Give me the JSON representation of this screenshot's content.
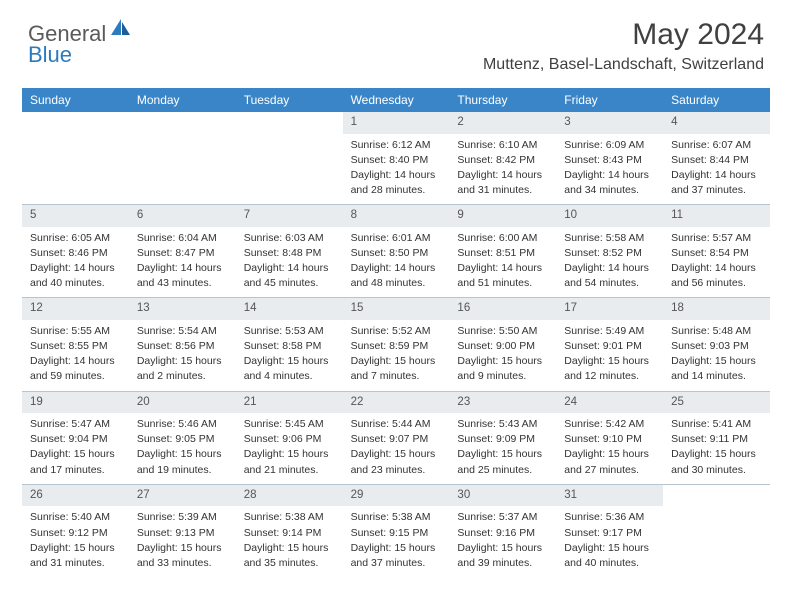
{
  "logo": {
    "general": "General",
    "blue": "Blue"
  },
  "title": "May 2024",
  "location": "Muttenz, Basel-Landschaft, Switzerland",
  "colors": {
    "header_bg": "#3a85c7",
    "header_text": "#ffffff",
    "daynum_bg": "#e8ecef",
    "border": "#b8c5d0",
    "body_text": "#333333",
    "title_text": "#404040",
    "logo_gray": "#5a5a5a",
    "logo_blue": "#2b7bbf"
  },
  "day_names": [
    "Sunday",
    "Monday",
    "Tuesday",
    "Wednesday",
    "Thursday",
    "Friday",
    "Saturday"
  ],
  "weeks": [
    [
      {
        "empty": true
      },
      {
        "empty": true
      },
      {
        "empty": true
      },
      {
        "n": "1",
        "sr": "Sunrise: 6:12 AM",
        "ss": "Sunset: 8:40 PM",
        "d1": "Daylight: 14 hours",
        "d2": "and 28 minutes."
      },
      {
        "n": "2",
        "sr": "Sunrise: 6:10 AM",
        "ss": "Sunset: 8:42 PM",
        "d1": "Daylight: 14 hours",
        "d2": "and 31 minutes."
      },
      {
        "n": "3",
        "sr": "Sunrise: 6:09 AM",
        "ss": "Sunset: 8:43 PM",
        "d1": "Daylight: 14 hours",
        "d2": "and 34 minutes."
      },
      {
        "n": "4",
        "sr": "Sunrise: 6:07 AM",
        "ss": "Sunset: 8:44 PM",
        "d1": "Daylight: 14 hours",
        "d2": "and 37 minutes."
      }
    ],
    [
      {
        "n": "5",
        "sr": "Sunrise: 6:05 AM",
        "ss": "Sunset: 8:46 PM",
        "d1": "Daylight: 14 hours",
        "d2": "and 40 minutes."
      },
      {
        "n": "6",
        "sr": "Sunrise: 6:04 AM",
        "ss": "Sunset: 8:47 PM",
        "d1": "Daylight: 14 hours",
        "d2": "and 43 minutes."
      },
      {
        "n": "7",
        "sr": "Sunrise: 6:03 AM",
        "ss": "Sunset: 8:48 PM",
        "d1": "Daylight: 14 hours",
        "d2": "and 45 minutes."
      },
      {
        "n": "8",
        "sr": "Sunrise: 6:01 AM",
        "ss": "Sunset: 8:50 PM",
        "d1": "Daylight: 14 hours",
        "d2": "and 48 minutes."
      },
      {
        "n": "9",
        "sr": "Sunrise: 6:00 AM",
        "ss": "Sunset: 8:51 PM",
        "d1": "Daylight: 14 hours",
        "d2": "and 51 minutes."
      },
      {
        "n": "10",
        "sr": "Sunrise: 5:58 AM",
        "ss": "Sunset: 8:52 PM",
        "d1": "Daylight: 14 hours",
        "d2": "and 54 minutes."
      },
      {
        "n": "11",
        "sr": "Sunrise: 5:57 AM",
        "ss": "Sunset: 8:54 PM",
        "d1": "Daylight: 14 hours",
        "d2": "and 56 minutes."
      }
    ],
    [
      {
        "n": "12",
        "sr": "Sunrise: 5:55 AM",
        "ss": "Sunset: 8:55 PM",
        "d1": "Daylight: 14 hours",
        "d2": "and 59 minutes."
      },
      {
        "n": "13",
        "sr": "Sunrise: 5:54 AM",
        "ss": "Sunset: 8:56 PM",
        "d1": "Daylight: 15 hours",
        "d2": "and 2 minutes."
      },
      {
        "n": "14",
        "sr": "Sunrise: 5:53 AM",
        "ss": "Sunset: 8:58 PM",
        "d1": "Daylight: 15 hours",
        "d2": "and 4 minutes."
      },
      {
        "n": "15",
        "sr": "Sunrise: 5:52 AM",
        "ss": "Sunset: 8:59 PM",
        "d1": "Daylight: 15 hours",
        "d2": "and 7 minutes."
      },
      {
        "n": "16",
        "sr": "Sunrise: 5:50 AM",
        "ss": "Sunset: 9:00 PM",
        "d1": "Daylight: 15 hours",
        "d2": "and 9 minutes."
      },
      {
        "n": "17",
        "sr": "Sunrise: 5:49 AM",
        "ss": "Sunset: 9:01 PM",
        "d1": "Daylight: 15 hours",
        "d2": "and 12 minutes."
      },
      {
        "n": "18",
        "sr": "Sunrise: 5:48 AM",
        "ss": "Sunset: 9:03 PM",
        "d1": "Daylight: 15 hours",
        "d2": "and 14 minutes."
      }
    ],
    [
      {
        "n": "19",
        "sr": "Sunrise: 5:47 AM",
        "ss": "Sunset: 9:04 PM",
        "d1": "Daylight: 15 hours",
        "d2": "and 17 minutes."
      },
      {
        "n": "20",
        "sr": "Sunrise: 5:46 AM",
        "ss": "Sunset: 9:05 PM",
        "d1": "Daylight: 15 hours",
        "d2": "and 19 minutes."
      },
      {
        "n": "21",
        "sr": "Sunrise: 5:45 AM",
        "ss": "Sunset: 9:06 PM",
        "d1": "Daylight: 15 hours",
        "d2": "and 21 minutes."
      },
      {
        "n": "22",
        "sr": "Sunrise: 5:44 AM",
        "ss": "Sunset: 9:07 PM",
        "d1": "Daylight: 15 hours",
        "d2": "and 23 minutes."
      },
      {
        "n": "23",
        "sr": "Sunrise: 5:43 AM",
        "ss": "Sunset: 9:09 PM",
        "d1": "Daylight: 15 hours",
        "d2": "and 25 minutes."
      },
      {
        "n": "24",
        "sr": "Sunrise: 5:42 AM",
        "ss": "Sunset: 9:10 PM",
        "d1": "Daylight: 15 hours",
        "d2": "and 27 minutes."
      },
      {
        "n": "25",
        "sr": "Sunrise: 5:41 AM",
        "ss": "Sunset: 9:11 PM",
        "d1": "Daylight: 15 hours",
        "d2": "and 30 minutes."
      }
    ],
    [
      {
        "n": "26",
        "sr": "Sunrise: 5:40 AM",
        "ss": "Sunset: 9:12 PM",
        "d1": "Daylight: 15 hours",
        "d2": "and 31 minutes."
      },
      {
        "n": "27",
        "sr": "Sunrise: 5:39 AM",
        "ss": "Sunset: 9:13 PM",
        "d1": "Daylight: 15 hours",
        "d2": "and 33 minutes."
      },
      {
        "n": "28",
        "sr": "Sunrise: 5:38 AM",
        "ss": "Sunset: 9:14 PM",
        "d1": "Daylight: 15 hours",
        "d2": "and 35 minutes."
      },
      {
        "n": "29",
        "sr": "Sunrise: 5:38 AM",
        "ss": "Sunset: 9:15 PM",
        "d1": "Daylight: 15 hours",
        "d2": "and 37 minutes."
      },
      {
        "n": "30",
        "sr": "Sunrise: 5:37 AM",
        "ss": "Sunset: 9:16 PM",
        "d1": "Daylight: 15 hours",
        "d2": "and 39 minutes."
      },
      {
        "n": "31",
        "sr": "Sunrise: 5:36 AM",
        "ss": "Sunset: 9:17 PM",
        "d1": "Daylight: 15 hours",
        "d2": "and 40 minutes."
      },
      {
        "empty": true
      }
    ]
  ]
}
